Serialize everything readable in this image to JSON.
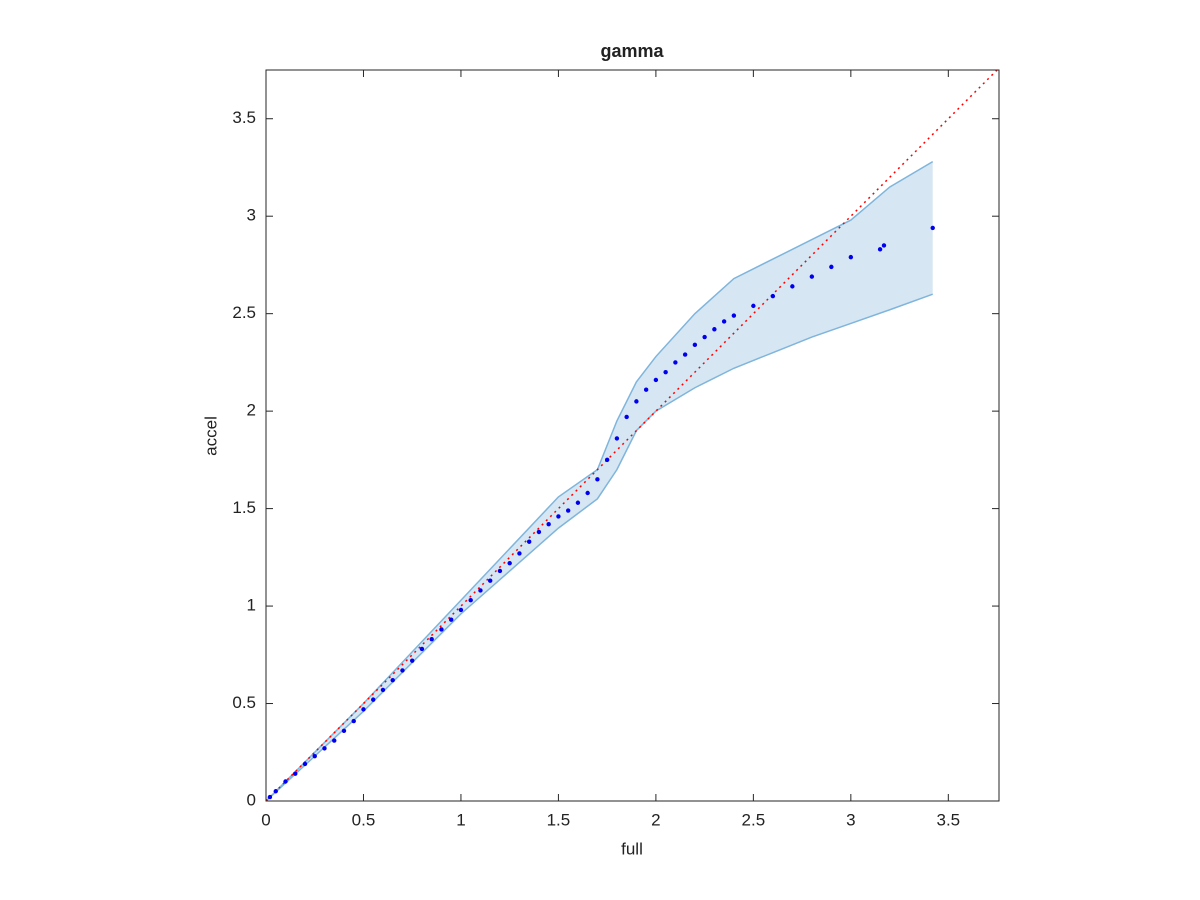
{
  "chart_data": {
    "type": "scatter",
    "title": "gamma",
    "x_label": "full",
    "y_label": "accel",
    "xlim": [
      0,
      3.76
    ],
    "ylim": [
      0,
      3.75
    ],
    "xticks": [
      0,
      0.5,
      1,
      1.5,
      2,
      2.5,
      3,
      3.5
    ],
    "yticks": [
      0,
      0.5,
      1,
      1.5,
      2,
      2.5,
      3,
      3.5
    ],
    "points": {
      "color": "#0000ee",
      "x": [
        0.02,
        0.05,
        0.1,
        0.15,
        0.2,
        0.25,
        0.3,
        0.35,
        0.4,
        0.45,
        0.5,
        0.55,
        0.6,
        0.65,
        0.7,
        0.75,
        0.8,
        0.85,
        0.9,
        0.95,
        1.0,
        1.05,
        1.1,
        1.15,
        1.2,
        1.25,
        1.3,
        1.35,
        1.4,
        1.45,
        1.5,
        1.55,
        1.6,
        1.65,
        1.7,
        1.75,
        1.8,
        1.85,
        1.9,
        1.95,
        2.0,
        2.05,
        2.1,
        2.15,
        2.2,
        2.25,
        2.3,
        2.35,
        2.4,
        2.5,
        2.6,
        2.7,
        2.8,
        2.9,
        3.0,
        3.15,
        3.17,
        3.42
      ],
      "y": [
        0.02,
        0.05,
        0.1,
        0.14,
        0.19,
        0.23,
        0.27,
        0.31,
        0.36,
        0.41,
        0.47,
        0.52,
        0.57,
        0.62,
        0.67,
        0.72,
        0.78,
        0.83,
        0.88,
        0.93,
        0.98,
        1.03,
        1.08,
        1.13,
        1.18,
        1.22,
        1.27,
        1.33,
        1.38,
        1.42,
        1.46,
        1.49,
        1.53,
        1.58,
        1.65,
        1.75,
        1.86,
        1.97,
        2.05,
        2.11,
        2.16,
        2.2,
        2.25,
        2.29,
        2.34,
        2.38,
        2.42,
        2.46,
        2.49,
        2.54,
        2.59,
        2.64,
        2.69,
        2.74,
        2.79,
        2.83,
        2.85,
        2.94
      ]
    },
    "band": {
      "color": "#7fb5dc",
      "fill": "#d6e6f3",
      "x": [
        0,
        0.5,
        1.0,
        1.5,
        1.7,
        1.8,
        1.9,
        2.0,
        2.2,
        2.4,
        2.6,
        2.8,
        3.0,
        3.2,
        3.42
      ],
      "lower": [
        0,
        0.46,
        0.96,
        1.4,
        1.55,
        1.7,
        1.9,
        2.0,
        2.12,
        2.22,
        2.3,
        2.38,
        2.45,
        2.52,
        2.6
      ],
      "upper": [
        0,
        0.5,
        1.03,
        1.56,
        1.7,
        1.95,
        2.15,
        2.28,
        2.5,
        2.68,
        2.78,
        2.88,
        2.98,
        3.15,
        3.28
      ]
    },
    "reference_line": {
      "color": "#ff0000",
      "x": [
        0,
        3.76
      ],
      "y": [
        0,
        3.76
      ]
    }
  }
}
